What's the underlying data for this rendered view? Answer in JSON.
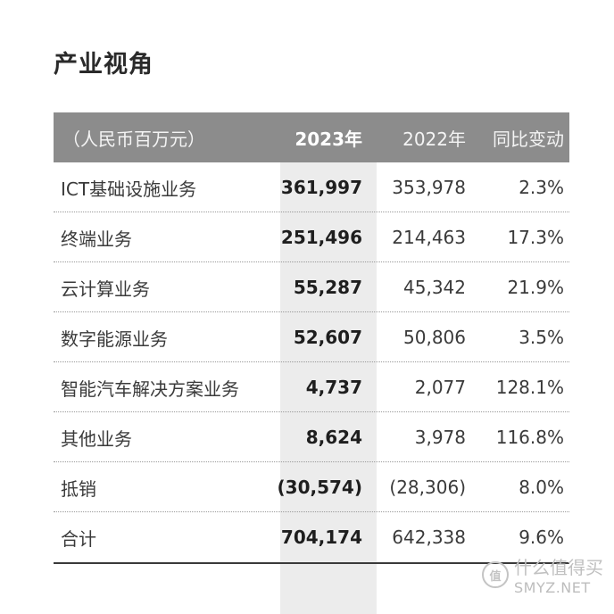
{
  "title": "产业视角",
  "table": {
    "headers": {
      "label": "（人民币百万元）",
      "y2023": "2023年",
      "y2022": "2022年",
      "yoy": "同比变动"
    },
    "rows": [
      {
        "label": "ICT基础设施业务",
        "y2023": "361,997",
        "y2022": "353,978",
        "yoy": "2.3%"
      },
      {
        "label": "终端业务",
        "y2023": "251,496",
        "y2022": "214,463",
        "yoy": "17.3%"
      },
      {
        "label": "云计算业务",
        "y2023": "55,287",
        "y2022": "45,342",
        "yoy": "21.9%"
      },
      {
        "label": "数字能源业务",
        "y2023": "52,607",
        "y2022": "50,806",
        "yoy": "3.5%"
      },
      {
        "label": "智能汽车解决方案业务",
        "y2023": "4,737",
        "y2022": "2,077",
        "yoy": "128.1%"
      },
      {
        "label": "其他业务",
        "y2023": "8,624",
        "y2022": "3,978",
        "yoy": "116.8%"
      },
      {
        "label": "抵销",
        "y2023": "(30,574)",
        "y2022": "(28,306)",
        "yoy": "8.0%"
      },
      {
        "label": "合计",
        "y2023": "704,174",
        "y2022": "642,338",
        "yoy": "9.6%"
      }
    ]
  },
  "watermark": {
    "logo": "值",
    "cn": "什么值得买",
    "en": "SMYZ.NET"
  },
  "colors": {
    "header_bg": "#8c8c8c",
    "highlight_column_bg": "#ececec"
  }
}
